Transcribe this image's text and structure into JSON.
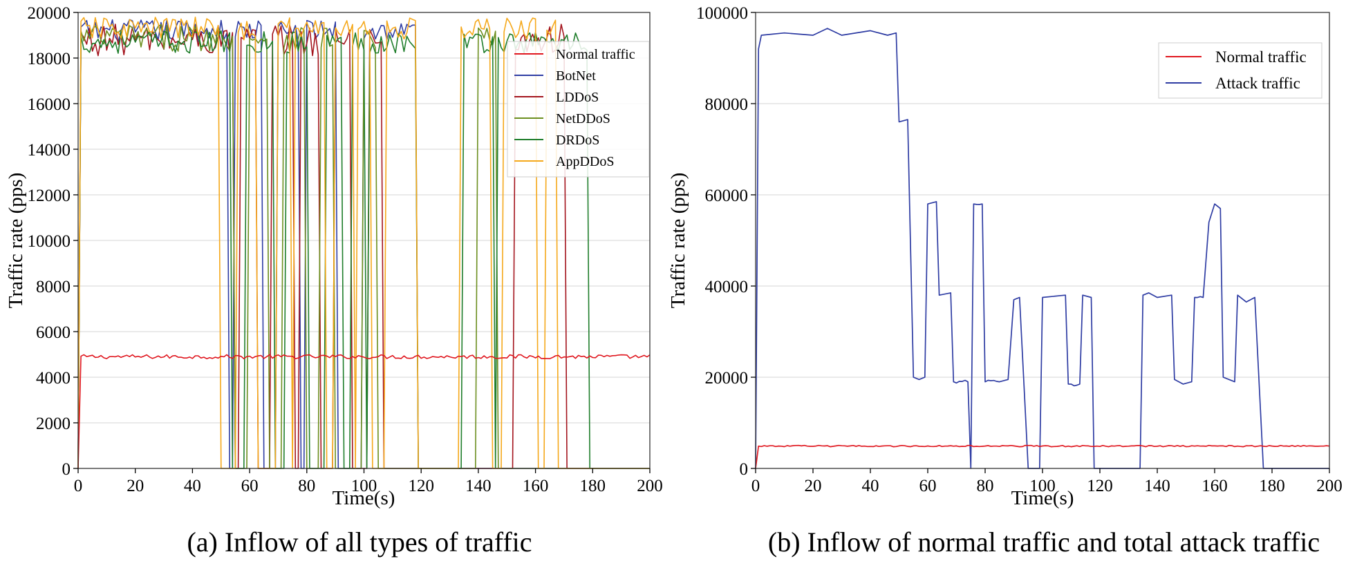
{
  "colors": {
    "normal": "#e0161e",
    "botnet": "#2e3ca3",
    "lddos": "#a3131c",
    "netddos": "#6b8e1e",
    "drdos": "#1e7d2a",
    "appddos": "#f5a81a"
  },
  "chart_data": [
    {
      "type": "line",
      "caption": "(a) Inflow of all types of traffic",
      "xlabel": "Time(s)",
      "ylabel": "Traffic rate (pps)",
      "xlim": [
        0,
        200
      ],
      "ylim": [
        0,
        20000
      ],
      "xticks": [
        "0",
        "20",
        "40",
        "60",
        "80",
        "100",
        "120",
        "140",
        "160",
        "180",
        "200"
      ],
      "yticks": [
        "0",
        "2000",
        "4000",
        "6000",
        "8000",
        "10000",
        "12000",
        "14000",
        "16000",
        "18000",
        "20000"
      ],
      "legend_position": "top-right",
      "series": [
        {
          "name": "Normal traffic",
          "color_key": "normal",
          "base": 4900,
          "jitter": 90,
          "on_intervals": [
            [
              1,
              200
            ]
          ]
        },
        {
          "name": "BotNet",
          "color_key": "botnet",
          "base": 19200,
          "jitter": 500,
          "on_intervals": [
            [
              1,
              52
            ],
            [
              55,
              64
            ],
            [
              70,
              77
            ],
            [
              80,
              90
            ],
            [
              100,
              118
            ]
          ]
        },
        {
          "name": "LDDoS",
          "color_key": "lddos",
          "base": 18800,
          "jitter": 700,
          "on_intervals": [
            [
              1,
              54
            ],
            [
              57,
              62
            ],
            [
              68,
              75
            ],
            [
              78,
              84
            ],
            [
              90,
              95
            ],
            [
              102,
              106
            ],
            [
              153,
              170
            ]
          ]
        },
        {
          "name": "NetDDoS",
          "color_key": "netddos",
          "base": 18900,
          "jitter": 600,
          "on_intervals": [
            [
              1,
              54
            ],
            [
              60,
              66
            ],
            [
              72,
              79
            ],
            [
              85,
              89
            ],
            [
              100,
              104
            ],
            [
              140,
              146
            ]
          ]
        },
        {
          "name": "DRDoS",
          "color_key": "drdos",
          "base": 18700,
          "jitter": 500,
          "on_intervals": [
            [
              1,
              53
            ],
            [
              59,
              68
            ],
            [
              73,
              80
            ],
            [
              87,
              92
            ],
            [
              96,
              100
            ],
            [
              102,
              118
            ],
            [
              135,
              145
            ],
            [
              147,
              165
            ],
            [
              166,
              178
            ]
          ]
        },
        {
          "name": "AppDDoS",
          "color_key": "appddos",
          "base": 19300,
          "jitter": 500,
          "on_intervals": [
            [
              1,
              49
            ],
            [
              56,
              62
            ],
            [
              70,
              74
            ],
            [
              76,
              86
            ],
            [
              90,
              96
            ],
            [
              98,
              102
            ],
            [
              108,
              118
            ],
            [
              134,
              144
            ],
            [
              149,
              160
            ],
            [
              164,
              167
            ]
          ]
        }
      ]
    },
    {
      "type": "line",
      "caption": "(b) Inflow of normal traffic and total attack traffic",
      "xlabel": "Time(s)",
      "ylabel": "Traffic rate (pps)",
      "xlim": [
        0,
        200
      ],
      "ylim": [
        0,
        100000
      ],
      "xticks": [
        "0",
        "20",
        "40",
        "60",
        "80",
        "100",
        "120",
        "140",
        "160",
        "180",
        "200"
      ],
      "yticks": [
        "0",
        "20000",
        "40000",
        "60000",
        "80000",
        "100000"
      ],
      "legend_position": "top-right",
      "series": [
        {
          "name": "Normal traffic",
          "color_key": "normal",
          "points": [
            [
              0,
              0
            ],
            [
              1,
              4900
            ],
            [
              200,
              4900
            ]
          ],
          "jitter": 150
        },
        {
          "name": "Attack traffic",
          "color_key": "botnet",
          "points": [
            [
              0,
              0
            ],
            [
              1,
              92000
            ],
            [
              2,
              95000
            ],
            [
              10,
              95500
            ],
            [
              20,
              95000
            ],
            [
              25,
              96500
            ],
            [
              30,
              95000
            ],
            [
              40,
              96000
            ],
            [
              46,
              95000
            ],
            [
              49,
              95500
            ],
            [
              50,
              76000
            ],
            [
              53,
              76500
            ],
            [
              55,
              20000
            ],
            [
              57,
              19500
            ],
            [
              59,
              20000
            ],
            [
              60,
              58000
            ],
            [
              63,
              58500
            ],
            [
              64,
              38000
            ],
            [
              68,
              38500
            ],
            [
              69,
              19000
            ],
            [
              74,
              19000
            ],
            [
              75,
              0
            ],
            [
              76,
              58000
            ],
            [
              79,
              58000
            ],
            [
              80,
              19000
            ],
            [
              85,
              19000
            ],
            [
              88,
              19500
            ],
            [
              90,
              37000
            ],
            [
              92,
              37500
            ],
            [
              95,
              0
            ],
            [
              99,
              0
            ],
            [
              100,
              37500
            ],
            [
              108,
              38000
            ],
            [
              109,
              18500
            ],
            [
              113,
              18500
            ],
            [
              114,
              38000
            ],
            [
              117,
              37500
            ],
            [
              118,
              0
            ],
            [
              134,
              0
            ],
            [
              135,
              38000
            ],
            [
              137,
              38500
            ],
            [
              140,
              37500
            ],
            [
              145,
              38000
            ],
            [
              146,
              19500
            ],
            [
              149,
              18500
            ],
            [
              152,
              19000
            ],
            [
              153,
              37500
            ],
            [
              156,
              37500
            ],
            [
              158,
              54000
            ],
            [
              160,
              58000
            ],
            [
              162,
              57000
            ],
            [
              163,
              20000
            ],
            [
              167,
              19000
            ],
            [
              168,
              38000
            ],
            [
              171,
              36500
            ],
            [
              174,
              37500
            ],
            [
              177,
              0
            ],
            [
              200,
              0
            ]
          ],
          "jitter": 400
        }
      ]
    }
  ]
}
